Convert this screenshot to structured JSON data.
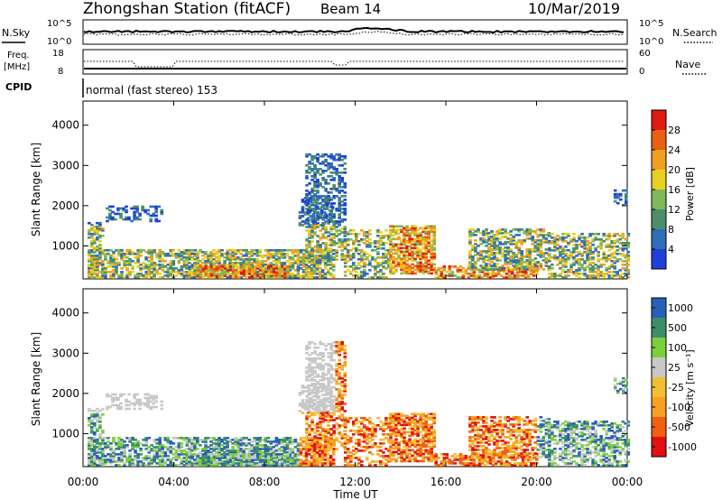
{
  "header": {
    "station_title": "Zhongshan Station (fitACF)",
    "beam": "Beam 14",
    "date": "10/Mar/2019"
  },
  "noise_panel": {
    "left_label": "N.Sky",
    "left_ticks": [
      "10^5",
      "10^0"
    ],
    "right_label": "N.Search",
    "right_ticks": [
      "10^5",
      "10^0"
    ]
  },
  "freq_panel": {
    "left_label_line1": "Freq.",
    "left_label_line2": "[MHz]",
    "left_ticks": [
      "18",
      "8"
    ],
    "right_label": "Nave",
    "right_ticks": [
      "60",
      "0"
    ]
  },
  "cpid": {
    "label": "CPID",
    "text": "normal (fast stereo) 153"
  },
  "colors": {
    "power_scale": [
      "#1f3fd9",
      "#2f6db8",
      "#4a8f6a",
      "#7fb85a",
      "#e8d020",
      "#f0a020",
      "#e86010",
      "#e01a10"
    ],
    "velocity_scale": [
      "#e01010",
      "#f06010",
      "#f8a020",
      "#f0c030",
      "#c8c8c8",
      "#7ccf3a",
      "#3a8f6a",
      "#2a5fb8"
    ]
  },
  "chart_data": [
    {
      "type": "heatmap",
      "panel": "power",
      "ylabel": "Slant Range [km]",
      "yticks": [
        1000,
        2000,
        3000,
        4000
      ],
      "ylim": [
        180,
        4600
      ],
      "xlim_hours": [
        0,
        24
      ],
      "colorbar_label": "Power [dB]",
      "colorbar_ticks": [
        "4",
        "8",
        "12",
        "16",
        "20",
        "24",
        "28"
      ],
      "colorbar_range": [
        0,
        30
      ]
    },
    {
      "type": "heatmap",
      "panel": "velocity",
      "ylabel": "Slant Range [km]",
      "yticks": [
        1000,
        2000,
        3000,
        4000
      ],
      "ylim": [
        180,
        4600
      ],
      "xlim_hours": [
        0,
        24
      ],
      "colorbar_label": "Velocity [m s⁻¹]",
      "colorbar_ticks": [
        "1000",
        "500",
        "100",
        "25",
        "-25",
        "-100",
        "-500",
        "-1000"
      ]
    }
  ],
  "xaxis": {
    "ticks": [
      "00:00",
      "04:00",
      "08:00",
      "12:00",
      "16:00",
      "20:00",
      "00:00"
    ],
    "label": "Time UT"
  }
}
